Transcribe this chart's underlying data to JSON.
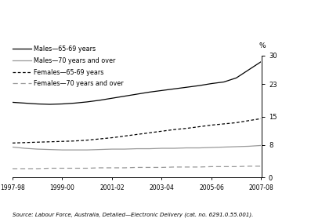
{
  "x_labels": [
    "1997-98",
    "1999-00",
    "2001-02",
    "2003-04",
    "2005-06",
    "2007-08"
  ],
  "x_tick_positions": [
    0,
    2,
    4,
    6,
    8,
    10
  ],
  "x_values": [
    0,
    0.5,
    1.0,
    1.5,
    2.0,
    2.5,
    3.0,
    3.5,
    4.0,
    4.5,
    5.0,
    5.5,
    6.0,
    6.5,
    7.0,
    7.5,
    8.0,
    8.5,
    9.0,
    9.5,
    10.0
  ],
  "males_65_69": [
    18.5,
    18.3,
    18.1,
    18.0,
    18.1,
    18.3,
    18.6,
    19.0,
    19.5,
    20.0,
    20.5,
    21.0,
    21.4,
    21.8,
    22.2,
    22.6,
    23.1,
    23.5,
    24.5,
    26.5,
    28.5
  ],
  "males_70_over": [
    7.5,
    7.2,
    7.0,
    6.9,
    6.8,
    6.8,
    6.8,
    6.9,
    7.0,
    7.0,
    7.1,
    7.1,
    7.2,
    7.2,
    7.3,
    7.3,
    7.4,
    7.5,
    7.6,
    7.7,
    7.9
  ],
  "females_65_69": [
    8.5,
    8.6,
    8.7,
    8.8,
    8.9,
    9.0,
    9.2,
    9.5,
    9.8,
    10.2,
    10.6,
    11.0,
    11.4,
    11.8,
    12.1,
    12.5,
    12.9,
    13.2,
    13.5,
    14.0,
    14.5
  ],
  "females_70_over": [
    2.2,
    2.2,
    2.2,
    2.3,
    2.3,
    2.3,
    2.3,
    2.4,
    2.4,
    2.4,
    2.5,
    2.5,
    2.5,
    2.6,
    2.6,
    2.6,
    2.7,
    2.7,
    2.7,
    2.8,
    2.8
  ],
  "ylim": [
    0,
    30
  ],
  "yticks": [
    0,
    8,
    15,
    23,
    30
  ],
  "ytick_labels": [
    "0",
    "8",
    "15",
    "23",
    "30"
  ],
  "ylabel": "%",
  "source_text": "Source: Labour Force, Australia, Detailed—Electronic Delivery (cat. no. 6291.0.55.001).",
  "legend_labels": [
    "Males—65-69 years",
    "Males—70 years and over",
    "Females—65-69 years",
    "Females—70 years and over"
  ],
  "line_colors": [
    "#000000",
    "#999999",
    "#000000",
    "#999999"
  ],
  "line_styles": [
    "-",
    "-",
    "--",
    "--"
  ],
  "background": "#ffffff"
}
